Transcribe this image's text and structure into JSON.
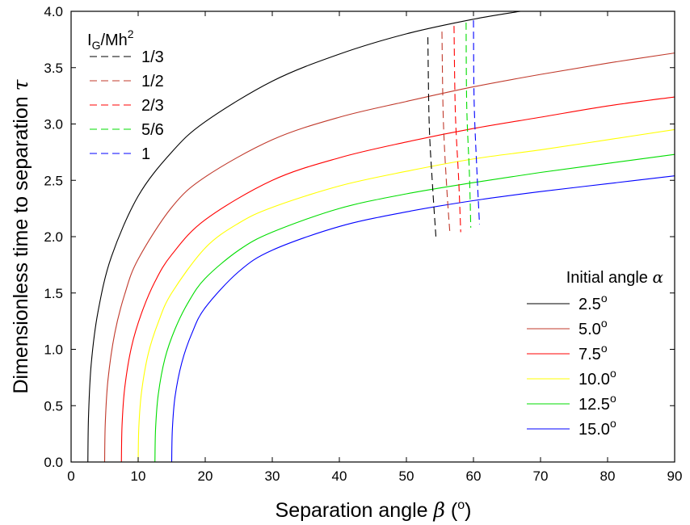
{
  "chart_data": {
    "type": "line",
    "xlabel": "Separation angle",
    "xlabel_symbol": "β",
    "xlabel_unit": "o",
    "ylabel": "Dimensionless time to separation",
    "ylabel_symbol": "τ",
    "xlim": [
      0,
      90
    ],
    "ylim": [
      0,
      4
    ],
    "xticks": [
      0,
      10,
      20,
      30,
      40,
      50,
      60,
      70,
      80,
      90
    ],
    "yticks": [
      0.0,
      0.5,
      1.0,
      1.5,
      2.0,
      2.5,
      3.0,
      3.5,
      4.0
    ],
    "xtick_labels": [
      "0",
      "10",
      "20",
      "30",
      "40",
      "50",
      "60",
      "70",
      "80",
      "90"
    ],
    "ytick_labels": [
      "0.0",
      "0.5",
      "1.0",
      "1.5",
      "2.0",
      "2.5",
      "3.0",
      "3.5",
      "4.0"
    ],
    "grid": false,
    "solid_legend": {
      "title": "Initial angle",
      "title_symbol": "α",
      "placement": "lower-right"
    },
    "dashed_legend": {
      "title_base": "I",
      "title_sub": "G",
      "title_rest": "/Mh",
      "title_sup": "2",
      "placement": "upper-left"
    },
    "series": [
      {
        "name": "2.5",
        "degree_mark": "o",
        "color": "#000000",
        "style": "solid",
        "x": [
          2.5,
          2.6,
          3,
          4,
          6,
          10,
          15,
          20,
          30,
          40,
          50,
          60,
          67
        ],
        "y": [
          0.0,
          0.41,
          0.87,
          1.33,
          1.82,
          2.36,
          2.75,
          3.02,
          3.38,
          3.62,
          3.8,
          3.93,
          4.0
        ]
      },
      {
        "name": "5.0",
        "degree_mark": "o",
        "color": "#c0392b",
        "style": "solid",
        "x": [
          5.0,
          5.1,
          5.5,
          6.5,
          8,
          10,
          15,
          20,
          30,
          40,
          50,
          60,
          70,
          80,
          90
        ],
        "y": [
          0.0,
          0.35,
          0.73,
          1.14,
          1.49,
          1.8,
          2.26,
          2.53,
          2.86,
          3.06,
          3.2,
          3.33,
          3.44,
          3.54,
          3.63
        ]
      },
      {
        "name": "7.5",
        "degree_mark": "o",
        "color": "#ff0000",
        "style": "solid",
        "x": [
          7.5,
          7.6,
          8,
          9,
          10.5,
          12.5,
          15,
          20,
          30,
          40,
          50,
          60,
          70,
          80,
          90
        ],
        "y": [
          0.0,
          0.33,
          0.66,
          1.02,
          1.32,
          1.6,
          1.84,
          2.15,
          2.5,
          2.7,
          2.84,
          2.96,
          3.06,
          3.16,
          3.24
        ]
      },
      {
        "name": "10.0",
        "degree_mark": "o",
        "color": "#ffff00",
        "style": "solid",
        "x": [
          10.0,
          10.1,
          10.5,
          11.5,
          13,
          15,
          20,
          25,
          30,
          40,
          50,
          60,
          70,
          80,
          90
        ],
        "y": [
          0.0,
          0.31,
          0.62,
          0.96,
          1.24,
          1.5,
          1.9,
          2.12,
          2.26,
          2.45,
          2.58,
          2.69,
          2.77,
          2.86,
          2.95
        ]
      },
      {
        "name": "12.5",
        "degree_mark": "o",
        "color": "#00dd00",
        "style": "solid",
        "x": [
          12.5,
          12.6,
          13,
          14,
          15.5,
          17.5,
          20,
          25,
          30,
          40,
          50,
          60,
          70,
          80,
          90
        ],
        "y": [
          0.0,
          0.3,
          0.6,
          0.92,
          1.18,
          1.42,
          1.63,
          1.88,
          2.04,
          2.25,
          2.38,
          2.48,
          2.57,
          2.65,
          2.73
        ]
      },
      {
        "name": "15.0",
        "degree_mark": "o",
        "color": "#0000ff",
        "style": "solid",
        "x": [
          15.0,
          15.1,
          15.5,
          16.5,
          18,
          20,
          25,
          30,
          40,
          50,
          60,
          70,
          80,
          90
        ],
        "y": [
          0.0,
          0.29,
          0.58,
          0.88,
          1.14,
          1.37,
          1.69,
          1.88,
          2.09,
          2.22,
          2.32,
          2.4,
          2.47,
          2.54
        ]
      },
      {
        "name": "1/3",
        "color": "#000000",
        "style": "dashed",
        "x": [
          53.2,
          53.4,
          53.9,
          54.4
        ],
        "y": [
          3.77,
          3.0,
          2.45,
          2.0
        ]
      },
      {
        "name": "1/2",
        "color": "#c0392b",
        "style": "dashed",
        "x": [
          55.3,
          55.5,
          56.0,
          56.5
        ],
        "y": [
          3.82,
          3.05,
          2.45,
          2.02
        ]
      },
      {
        "name": "2/3",
        "color": "#ff0000",
        "style": "dashed",
        "x": [
          57.1,
          57.3,
          57.8,
          58.1
        ],
        "y": [
          3.87,
          3.1,
          2.5,
          2.04
        ]
      },
      {
        "name": "5/6",
        "color": "#00dd00",
        "style": "dashed",
        "x": [
          58.9,
          59.0,
          59.4,
          59.6
        ],
        "y": [
          3.9,
          3.15,
          2.55,
          2.08
        ]
      },
      {
        "name": "1",
        "color": "#0000ff",
        "style": "dashed",
        "x": [
          60.0,
          60.1,
          60.5,
          60.9
        ],
        "y": [
          3.92,
          3.2,
          2.6,
          2.11
        ]
      }
    ]
  }
}
